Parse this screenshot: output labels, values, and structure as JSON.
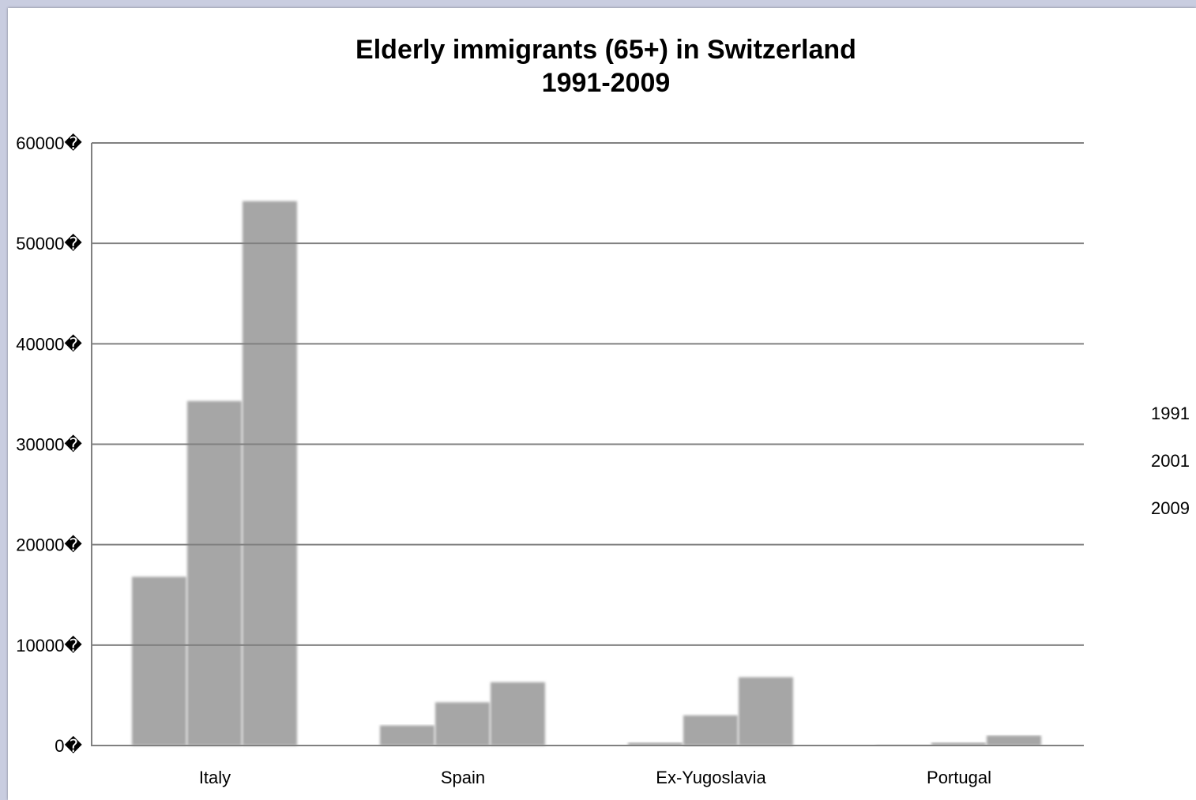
{
  "chart_data": {
    "type": "bar",
    "title": "Elderly immigrants (65+) in Switzerland",
    "subtitle": "1991-2009",
    "categories": [
      "Italy",
      "Spain",
      "Ex-Yugoslavia",
      "Portugal"
    ],
    "series": [
      {
        "name": "1991",
        "values": [
          16800,
          2000,
          300,
          100
        ]
      },
      {
        "name": "2001",
        "values": [
          34300,
          4300,
          3000,
          300
        ]
      },
      {
        "name": "2009",
        "values": [
          54200,
          6300,
          6800,
          1000
        ]
      }
    ],
    "y_ticks": [
      "0�",
      "10000�",
      "20000�",
      "30000�",
      "40000�",
      "50000�",
      "60000�"
    ],
    "ylim": [
      0,
      60000
    ],
    "grid": true,
    "legend_position": "right",
    "bar_color": "#a6a6a6",
    "grid_color": "#808080"
  }
}
